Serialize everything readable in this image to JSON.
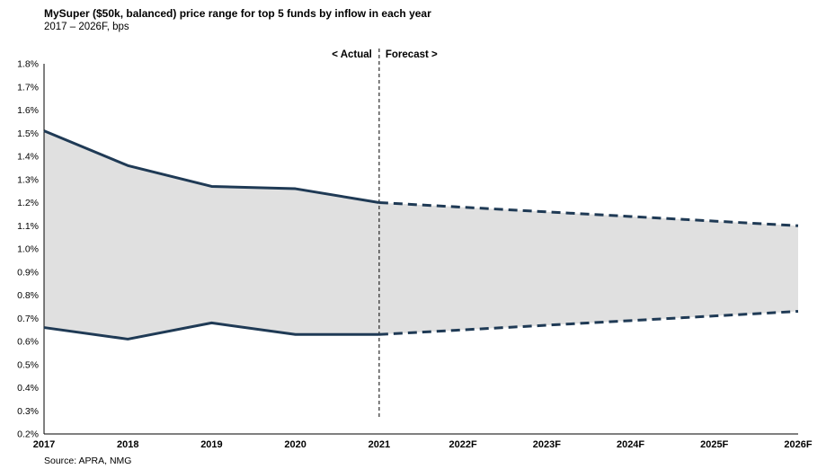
{
  "title": "MySuper ($50k, balanced) price range for top 5 funds by inflow in each year",
  "subtitle": "2017 – 2026F, bps",
  "source": "Source: APRA, NMG",
  "chart_data": {
    "type": "area",
    "title": "MySuper ($50k, balanced) price range for top 5 funds by inflow in each year",
    "subtitle": "2017 – 2026F, bps",
    "categories": [
      "2017",
      "2018",
      "2019",
      "2020",
      "2021",
      "2022F",
      "2023F",
      "2024F",
      "2025F",
      "2026F"
    ],
    "y_tick_labels": [
      "0.2%",
      "0.3%",
      "0.4%",
      "0.5%",
      "0.6%",
      "0.7%",
      "0.8%",
      "0.9%",
      "1.0%",
      "1.1%",
      "1.2%",
      "1.3%",
      "1.4%",
      "1.5%",
      "1.6%",
      "1.7%",
      "1.8%"
    ],
    "ylim": [
      0.2,
      1.8
    ],
    "y_unit": "%",
    "series": [
      {
        "values": [
          1.51,
          1.36,
          1.27,
          1.26,
          1.2,
          1.18,
          1.16,
          1.14,
          1.12,
          1.1
        ]
      },
      {
        "values": [
          0.66,
          0.61,
          0.68,
          0.63,
          0.63,
          0.65,
          0.67,
          0.69,
          0.71,
          0.73
        ]
      }
    ],
    "range_fill_color": "#e0e0e0",
    "line_color": "#1f3a55",
    "actual_last_index": 4,
    "forecast_divider": {
      "at": "2021",
      "left_label": "< Actual",
      "right_label": "Forecast >"
    },
    "grid": false,
    "legend": "none"
  }
}
